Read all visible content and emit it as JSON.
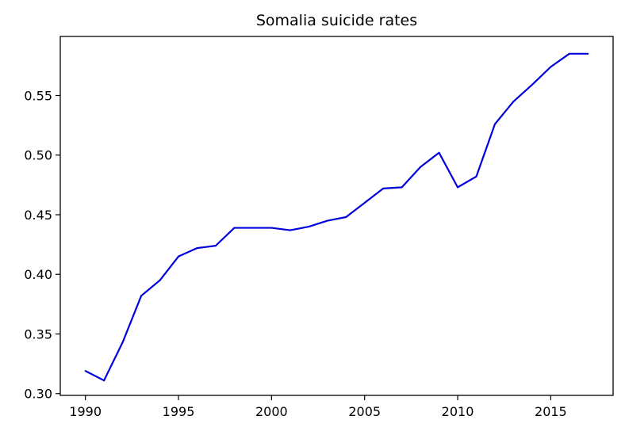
{
  "chart_data": {
    "type": "line",
    "title": "Somalia suicide rates",
    "xlabel": "",
    "ylabel": "",
    "xlim": [
      1988.65,
      2018.35
    ],
    "ylim": [
      0.2985,
      0.5995
    ],
    "x_ticks": [
      1990,
      1995,
      2000,
      2005,
      2010,
      2015
    ],
    "y_ticks": [
      0.3,
      0.35,
      0.4,
      0.45,
      0.5,
      0.55
    ],
    "x_tick_labels": [
      "1990",
      "1995",
      "2000",
      "2005",
      "2010",
      "2015"
    ],
    "y_tick_labels": [
      "0.30",
      "0.35",
      "0.40",
      "0.45",
      "0.50",
      "0.55"
    ],
    "grid": false,
    "legend": "none",
    "series": [
      {
        "color": "#0000dd",
        "x": [
          1990,
          1991,
          1992,
          1993,
          1994,
          1995,
          1996,
          1997,
          1998,
          1999,
          2000,
          2001,
          2002,
          2003,
          2004,
          2005,
          2006,
          2007,
          2008,
          2009,
          2010,
          2011,
          2012,
          2013,
          2014,
          2015,
          2016,
          2017
        ],
        "y": [
          0.319,
          0.311,
          0.343,
          0.382,
          0.395,
          0.415,
          0.422,
          0.424,
          0.439,
          0.439,
          0.439,
          0.437,
          0.44,
          0.445,
          0.448,
          0.46,
          0.472,
          0.473,
          0.49,
          0.502,
          0.473,
          0.482,
          0.526,
          0.545,
          0.559,
          0.574,
          0.585,
          0.585
        ]
      }
    ]
  }
}
